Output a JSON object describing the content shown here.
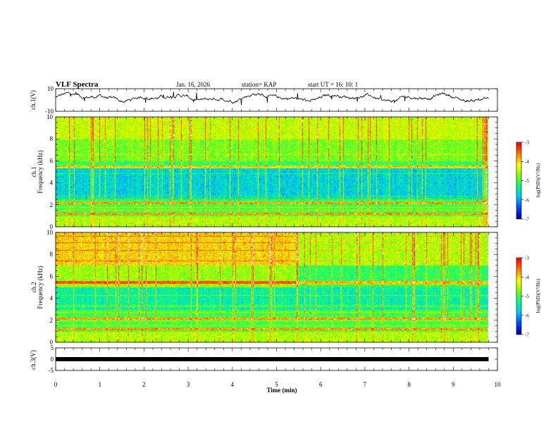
{
  "header": {
    "title": "VLF Spectra",
    "date": "Jan. 16, 2026",
    "station": "station= KAP",
    "start": "start UT =  16: 10: 1"
  },
  "colors": {
    "spectrum": [
      "#000000",
      "#0000b4",
      "#0050ff",
      "#00c8ff",
      "#00ff80",
      "#80ff00",
      "#ffff00",
      "#ff8000",
      "#ff0000",
      "#ffffff"
    ]
  },
  "chart_data": [
    {
      "type": "line",
      "name": "ch1-waveform",
      "ylabel": "ch.1(V)",
      "ylim": [
        -10,
        10
      ],
      "yticks": [
        {
          "value": 10,
          "label": "10"
        },
        {
          "value": -10,
          "label": "-10"
        }
      ],
      "xlim": [
        0,
        9.8
      ],
      "description_level_v": 2
    },
    {
      "type": "heatmap",
      "name": "ch1-spectrogram",
      "ylabel_channel": "ch.1",
      "ylabel": "Frequency (kHz)",
      "ylim": [
        0,
        10
      ],
      "yticks": [
        0,
        2,
        4,
        6,
        8,
        10
      ],
      "xlim": [
        0,
        9.8
      ],
      "colorbar": {
        "label": "log(PSD)(V²/Hz)",
        "range": [
          -7,
          -3
        ],
        "ticks": [
          -3,
          -4,
          -5,
          -6,
          -7
        ]
      }
    },
    {
      "type": "heatmap",
      "name": "ch2-spectrogram",
      "ylabel_channel": "ch.2",
      "ylabel": "Frequency (kHz)",
      "ylim": [
        0,
        10
      ],
      "yticks": [
        0,
        2,
        4,
        6,
        8,
        10
      ],
      "xlim": [
        0,
        9.8
      ],
      "colorbar": {
        "label": "log(PSD)(V²/Hz)",
        "range": [
          -7,
          -3
        ],
        "ticks": [
          -3,
          -4,
          -5,
          -6,
          -7
        ]
      }
    },
    {
      "type": "line",
      "name": "ch3-waveform",
      "ylabel": "ch.3(V)",
      "ylim": [
        -5,
        5
      ],
      "yticks": [
        {
          "value": 5,
          "label": "5"
        },
        {
          "value": 0,
          "label": "0"
        },
        {
          "value": -5,
          "label": "-5"
        }
      ],
      "xlim": [
        0,
        9.8
      ],
      "level_v": 0
    }
  ],
  "xaxis": {
    "label": "Time (min)",
    "ticks": [
      0,
      1,
      2,
      3,
      4,
      5,
      6,
      7,
      8,
      9,
      10
    ]
  }
}
